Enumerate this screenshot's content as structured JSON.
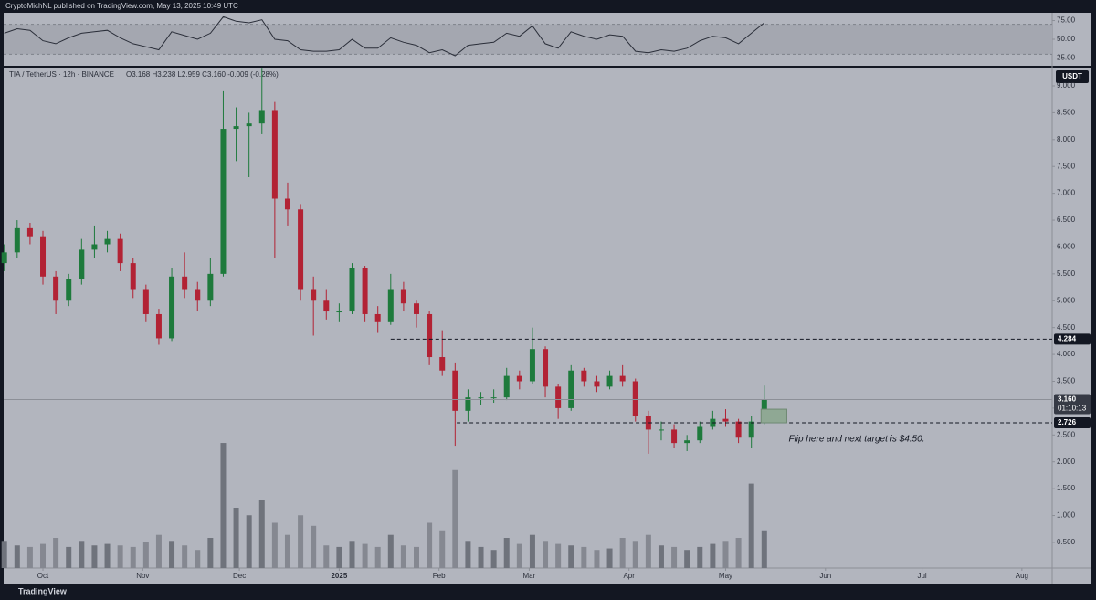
{
  "header": {
    "byline": "CryptoMichNL published on TradingView.com, May 13, 2025 10:49 UTC",
    "brand": "TradingView"
  },
  "chart_data": {
    "type": "candlestick",
    "symbol": "TIA / TetherUS · 12h · BINANCE",
    "ohlc_text": "O3.168 H3.238 L2.959 C3.160 -0.009 (-0.28%)",
    "currency": "USDT",
    "x": [
      -12,
      -8,
      -4,
      0,
      4,
      8,
      12,
      16,
      20,
      24,
      28,
      32,
      36,
      40,
      44,
      48,
      52,
      56,
      60,
      64,
      68,
      72,
      76,
      80,
      84,
      88,
      92,
      96,
      100,
      104,
      108,
      112,
      116,
      120,
      124,
      128,
      132,
      136,
      140,
      144,
      148,
      152,
      156,
      160,
      164,
      168,
      172,
      176,
      180,
      184,
      188,
      192,
      196,
      200,
      204,
      208,
      212,
      216,
      220,
      224
    ],
    "open": [
      5.7,
      5.9,
      6.35,
      6.2,
      5.45,
      5.0,
      5.4,
      5.95,
      6.05,
      6.15,
      5.7,
      5.2,
      4.75,
      4.3,
      5.45,
      5.2,
      5.0,
      5.5,
      8.2,
      8.25,
      8.3,
      8.55,
      6.9,
      6.7,
      5.2,
      5.0,
      4.8,
      4.8,
      5.6,
      4.75,
      4.6,
      5.2,
      4.95,
      4.75,
      3.95,
      3.7,
      2.95,
      3.2,
      3.2,
      3.2,
      3.6,
      3.5,
      4.1,
      3.4,
      3.0,
      3.7,
      3.5,
      3.4,
      3.6,
      3.5,
      2.85,
      2.6,
      2.6,
      2.35,
      2.4,
      2.65,
      2.8,
      2.75,
      2.45,
      2.75
    ],
    "high": [
      6.05,
      6.5,
      6.45,
      6.3,
      5.55,
      5.5,
      6.15,
      6.4,
      6.3,
      6.25,
      5.8,
      5.3,
      4.85,
      5.6,
      5.9,
      5.35,
      5.8,
      8.9,
      8.6,
      8.5,
      9.32,
      8.7,
      7.2,
      6.8,
      5.45,
      5.2,
      4.95,
      5.7,
      5.65,
      4.9,
      5.5,
      5.35,
      5.0,
      4.8,
      4.45,
      3.85,
      3.35,
      3.3,
      3.35,
      3.75,
      3.7,
      4.5,
      4.15,
      3.45,
      3.8,
      3.75,
      3.6,
      3.7,
      3.8,
      3.55,
      2.95,
      2.75,
      2.7,
      2.5,
      2.75,
      2.95,
      2.98,
      2.8,
      2.85,
      3.42
    ],
    "low": [
      5.55,
      5.8,
      6.05,
      5.3,
      4.75,
      4.9,
      5.3,
      5.8,
      5.9,
      5.55,
      5.05,
      4.6,
      4.18,
      4.25,
      5.05,
      4.8,
      4.9,
      5.45,
      7.6,
      7.3,
      8.1,
      5.8,
      6.4,
      5.0,
      4.35,
      4.65,
      4.6,
      4.75,
      4.6,
      4.4,
      4.55,
      4.8,
      4.5,
      3.8,
      3.6,
      2.3,
      2.75,
      3.05,
      3.1,
      3.15,
      3.35,
      3.45,
      3.2,
      2.8,
      2.95,
      3.4,
      3.3,
      3.35,
      3.4,
      2.75,
      2.15,
      2.4,
      2.25,
      2.2,
      2.35,
      2.6,
      2.65,
      2.35,
      2.25,
      2.7
    ],
    "close": [
      5.9,
      6.35,
      6.2,
      5.45,
      5.0,
      5.4,
      5.95,
      6.05,
      6.15,
      5.7,
      5.2,
      4.75,
      4.3,
      5.45,
      5.2,
      5.0,
      5.5,
      8.2,
      8.25,
      8.3,
      8.55,
      6.9,
      6.7,
      5.2,
      5.0,
      4.8,
      4.8,
      5.6,
      4.75,
      4.6,
      5.2,
      4.95,
      4.75,
      3.95,
      3.7,
      2.95,
      3.2,
      3.2,
      3.2,
      3.6,
      3.5,
      4.1,
      3.4,
      3.0,
      3.7,
      3.5,
      3.4,
      3.6,
      3.5,
      2.85,
      2.6,
      2.6,
      2.35,
      2.4,
      2.65,
      2.8,
      2.75,
      2.45,
      2.75,
      3.16
    ],
    "volume": [
      18,
      15,
      14,
      16,
      20,
      14,
      18,
      15,
      16,
      15,
      14,
      17,
      22,
      18,
      15,
      12,
      20,
      83,
      40,
      35,
      45,
      30,
      22,
      35,
      28,
      15,
      14,
      18,
      16,
      14,
      22,
      15,
      14,
      30,
      25,
      65,
      18,
      14,
      12,
      20,
      16,
      22,
      18,
      16,
      15,
      14,
      12,
      13,
      20,
      18,
      22,
      15,
      14,
      12,
      14,
      16,
      18,
      20,
      56,
      25
    ],
    "vlim": [
      0,
      100
    ],
    "up_color": "#1e7a3c",
    "down_color": "#b22234",
    "xlim": [
      -12.2,
      313.4
    ],
    "xticks": [
      {
        "value": 0,
        "label": "Oct"
      },
      {
        "value": 31,
        "label": "Nov"
      },
      {
        "value": 61,
        "label": "Dec"
      },
      {
        "value": 92,
        "label": "2025"
      },
      {
        "value": 123,
        "label": "Feb"
      },
      {
        "value": 151,
        "label": "Mar"
      },
      {
        "value": 182,
        "label": "Apr"
      },
      {
        "value": 212,
        "label": "May"
      },
      {
        "value": 243,
        "label": "Jun"
      },
      {
        "value": 273,
        "label": "Jul"
      },
      {
        "value": 304,
        "label": "Aug"
      }
    ],
    "ylim": [
      0.023,
      9.323
    ],
    "yticks": [
      {
        "value": 0.5,
        "label": "0.500"
      },
      {
        "value": 1,
        "label": "1.000"
      },
      {
        "value": 1.5,
        "label": "1.500"
      },
      {
        "value": 2,
        "label": "2.000"
      },
      {
        "value": 2.5,
        "label": "2.500"
      },
      {
        "value": 3,
        "label": "3.000"
      },
      {
        "value": 3.5,
        "label": "3.500"
      },
      {
        "value": 4,
        "label": "4.000"
      },
      {
        "value": 4.5,
        "label": "4.500"
      },
      {
        "value": 5,
        "label": "5.000"
      },
      {
        "value": 5.5,
        "label": "5.500"
      },
      {
        "value": 6,
        "label": "6.000"
      },
      {
        "value": 6.5,
        "label": "6.500"
      },
      {
        "value": 7,
        "label": "7.000"
      },
      {
        "value": 7.5,
        "label": "7.500"
      },
      {
        "value": 8,
        "label": "8.000"
      },
      {
        "value": 8.5,
        "label": "8.500"
      },
      {
        "value": 9,
        "label": "9.000"
      }
    ],
    "rsi": {
      "values": [
        58,
        64,
        62,
        48,
        44,
        52,
        58,
        60,
        62,
        52,
        44,
        40,
        36,
        60,
        55,
        50,
        58,
        80,
        74,
        72,
        76,
        50,
        48,
        36,
        34,
        34,
        36,
        50,
        38,
        38,
        52,
        46,
        42,
        32,
        36,
        28,
        42,
        44,
        46,
        58,
        54,
        68,
        44,
        38,
        60,
        54,
        50,
        56,
        54,
        34,
        32,
        36,
        34,
        38,
        48,
        54,
        52,
        44,
        58,
        72
      ],
      "ylim": [
        14.6,
        85.4
      ],
      "band": [
        30,
        70
      ],
      "yticks": [
        {
          "value": 25,
          "label": "25.00"
        },
        {
          "value": 50,
          "label": "50.00"
        },
        {
          "value": 75,
          "label": "75.00"
        }
      ]
    },
    "annotations": {
      "resistance": {
        "value": 4.284,
        "from": 108
      },
      "support": {
        "value": 2.726,
        "from": 128.5
      },
      "last_price": {
        "value": 3.16,
        "label": "3.160"
      },
      "countdown": "01:10:13",
      "zone": {
        "x": [
          223,
          231
        ],
        "y": [
          2.726,
          2.98
        ]
      },
      "note": "Flip here and next target is $4.50."
    }
  }
}
